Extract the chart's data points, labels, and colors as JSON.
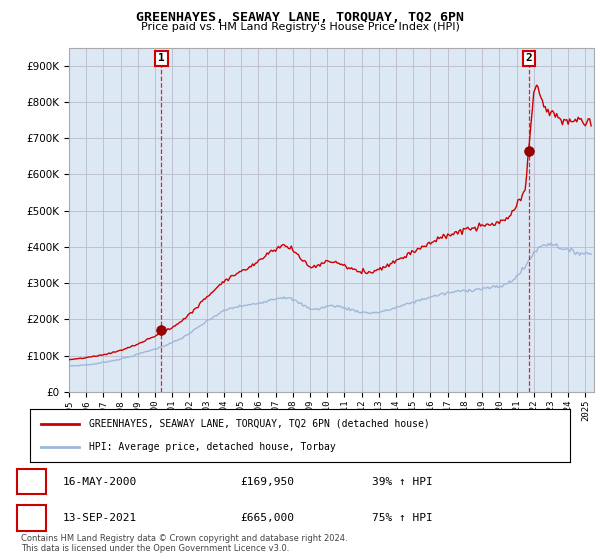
{
  "title": "GREENHAYES, SEAWAY LANE, TORQUAY, TQ2 6PN",
  "subtitle": "Price paid vs. HM Land Registry's House Price Index (HPI)",
  "ylim": [
    0,
    950000
  ],
  "yticks": [
    0,
    100000,
    200000,
    300000,
    400000,
    500000,
    600000,
    700000,
    800000,
    900000
  ],
  "xlim_start": 1995.0,
  "xlim_end": 2025.5,
  "t1_x": 2000.37,
  "t1_y": 169950,
  "t2_x": 2021.71,
  "t2_y": 665000,
  "legend_line1": "GREENHAYES, SEAWAY LANE, TORQUAY, TQ2 6PN (detached house)",
  "legend_line2": "HPI: Average price, detached house, Torbay",
  "footer": "Contains HM Land Registry data © Crown copyright and database right 2024.\nThis data is licensed under the Open Government Licence v3.0.",
  "hpi_color": "#a0b8d8",
  "price_color": "#cc0000",
  "bg_plot": "#dde8f5",
  "bg_color": "#ffffff",
  "grid_color": "#bbbbcc"
}
